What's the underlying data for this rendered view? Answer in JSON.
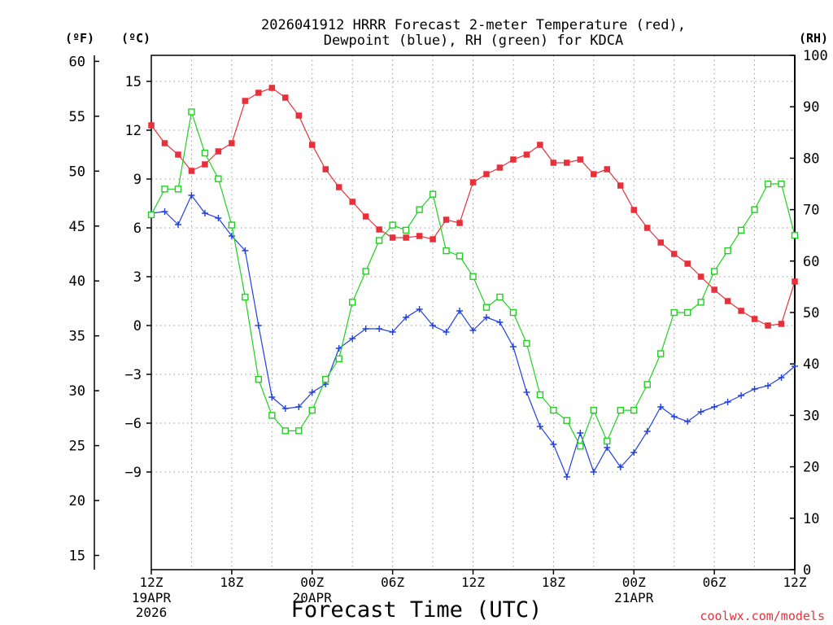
{
  "chart_data": {
    "type": "line",
    "title_line1": "2026041912 HRRR Forecast 2-meter Temperature (red),",
    "title_line2": "Dewpoint (blue), RH (green) for KDCA",
    "xlabel": "Forecast Time (UTC)",
    "watermark": "coolwx.com/models",
    "unit_left_f": "(ºF)",
    "unit_left_c": "(ºC)",
    "unit_right_rh": "(RH)",
    "hours_range": [
      0,
      48
    ],
    "c_range": [
      -15,
      16.6
    ],
    "rh_range": [
      0,
      100
    ],
    "f_range": [
      14.0,
      60.4
    ],
    "x_ticks": [
      {
        "hour": 0,
        "label": "12Z",
        "sub1": "19APR",
        "sub2": "2026"
      },
      {
        "hour": 6,
        "label": "18Z",
        "sub1": "",
        "sub2": ""
      },
      {
        "hour": 12,
        "label": "00Z",
        "sub1": "20APR",
        "sub2": ""
      },
      {
        "hour": 18,
        "label": "06Z",
        "sub1": "",
        "sub2": ""
      },
      {
        "hour": 24,
        "label": "12Z",
        "sub1": "",
        "sub2": ""
      },
      {
        "hour": 30,
        "label": "18Z",
        "sub1": "",
        "sub2": ""
      },
      {
        "hour": 36,
        "label": "00Z",
        "sub1": "21APR",
        "sub2": ""
      },
      {
        "hour": 42,
        "label": "06Z",
        "sub1": "",
        "sub2": ""
      },
      {
        "hour": 48,
        "label": "12Z",
        "sub1": "",
        "sub2": ""
      }
    ],
    "c_ticks": [
      {
        "value": 15,
        "label": "15"
      },
      {
        "value": 12,
        "label": "12"
      },
      {
        "value": 9,
        "label": "9"
      },
      {
        "value": 6,
        "label": "6"
      },
      {
        "value": 3,
        "label": "3"
      },
      {
        "value": 0,
        "label": "0"
      },
      {
        "value": -3,
        "label": "−3"
      },
      {
        "value": -6,
        "label": "−6"
      },
      {
        "value": -9,
        "label": "−9"
      }
    ],
    "f_ticks": [
      {
        "value": 60,
        "label": "60"
      },
      {
        "value": 55,
        "label": "55"
      },
      {
        "value": 50,
        "label": "50"
      },
      {
        "value": 45,
        "label": "45"
      },
      {
        "value": 40,
        "label": "40"
      },
      {
        "value": 35,
        "label": "35"
      },
      {
        "value": 30,
        "label": "30"
      },
      {
        "value": 25,
        "label": "25"
      },
      {
        "value": 20,
        "label": "20"
      },
      {
        "value": 15,
        "label": "15"
      }
    ],
    "rh_ticks": [
      {
        "value": 100,
        "label": "100"
      },
      {
        "value": 90,
        "label": "90"
      },
      {
        "value": 80,
        "label": "80"
      },
      {
        "value": 70,
        "label": "70"
      },
      {
        "value": 60,
        "label": "60"
      },
      {
        "value": 50,
        "label": "50"
      },
      {
        "value": 40,
        "label": "40"
      },
      {
        "value": 30,
        "label": "30"
      },
      {
        "value": 20,
        "label": "20"
      },
      {
        "value": 10,
        "label": "10"
      },
      {
        "value": 0,
        "label": "0"
      }
    ],
    "hours": [
      0,
      1,
      2,
      3,
      4,
      5,
      6,
      7,
      8,
      9,
      10,
      11,
      12,
      13,
      14,
      15,
      16,
      17,
      18,
      19,
      20,
      21,
      22,
      23,
      24,
      25,
      26,
      27,
      28,
      29,
      30,
      31,
      32,
      33,
      34,
      35,
      36,
      37,
      38,
      39,
      40,
      41,
      42,
      43,
      44,
      45,
      46,
      47,
      48
    ],
    "series": [
      {
        "name": "2-meter Temperature",
        "unit": "°C",
        "color": "#e8303a",
        "marker": "filled-square",
        "values": [
          12.3,
          11.2,
          10.5,
          9.5,
          9.9,
          10.7,
          11.2,
          13.8,
          14.3,
          14.6,
          14.0,
          12.9,
          11.1,
          9.6,
          8.5,
          7.6,
          6.7,
          5.9,
          5.4,
          5.4,
          5.5,
          5.3,
          6.5,
          6.3,
          8.8,
          9.3,
          9.7,
          10.2,
          10.5,
          11.1,
          10.0,
          10.0,
          10.2,
          9.3,
          9.6,
          8.6,
          7.1,
          6.0,
          5.1,
          4.4,
          3.8,
          3.0,
          2.2,
          1.5,
          0.9,
          0.4,
          0.0,
          0.1,
          2.7
        ]
      },
      {
        "name": "Dewpoint",
        "unit": "°C",
        "color": "#2040e0",
        "marker": "plus",
        "values": [
          6.9,
          7.0,
          6.2,
          8.0,
          6.9,
          6.6,
          5.5,
          4.6,
          0.0,
          -4.4,
          -5.1,
          -5.0,
          -4.1,
          -3.6,
          -1.4,
          -0.8,
          -0.2,
          -0.2,
          -0.4,
          0.5,
          1.0,
          0.0,
          -0.4,
          0.9,
          -0.3,
          0.5,
          0.2,
          -1.3,
          -4.1,
          -6.2,
          -7.3,
          -9.3,
          -6.6,
          -9.0,
          -7.5,
          -8.7,
          -7.8,
          -6.5,
          -5.0,
          -5.6,
          -5.9,
          -5.3,
          -5.0,
          -4.7,
          -4.3,
          -3.9,
          -3.7,
          -3.2,
          -2.5
        ]
      },
      {
        "name": "RH",
        "unit": "%",
        "color": "#20d020",
        "marker": "open-square",
        "values": [
          69,
          74,
          74,
          89,
          81,
          76,
          67,
          53,
          37,
          30,
          27,
          27,
          31,
          37,
          41,
          52,
          58,
          64,
          67,
          66,
          70,
          73,
          62,
          61,
          57,
          51,
          53,
          50,
          44,
          34,
          31,
          29,
          24,
          31,
          25,
          31,
          31,
          36,
          42,
          50,
          50,
          52,
          58,
          62,
          66,
          70,
          75,
          75,
          65
        ]
      }
    ]
  }
}
